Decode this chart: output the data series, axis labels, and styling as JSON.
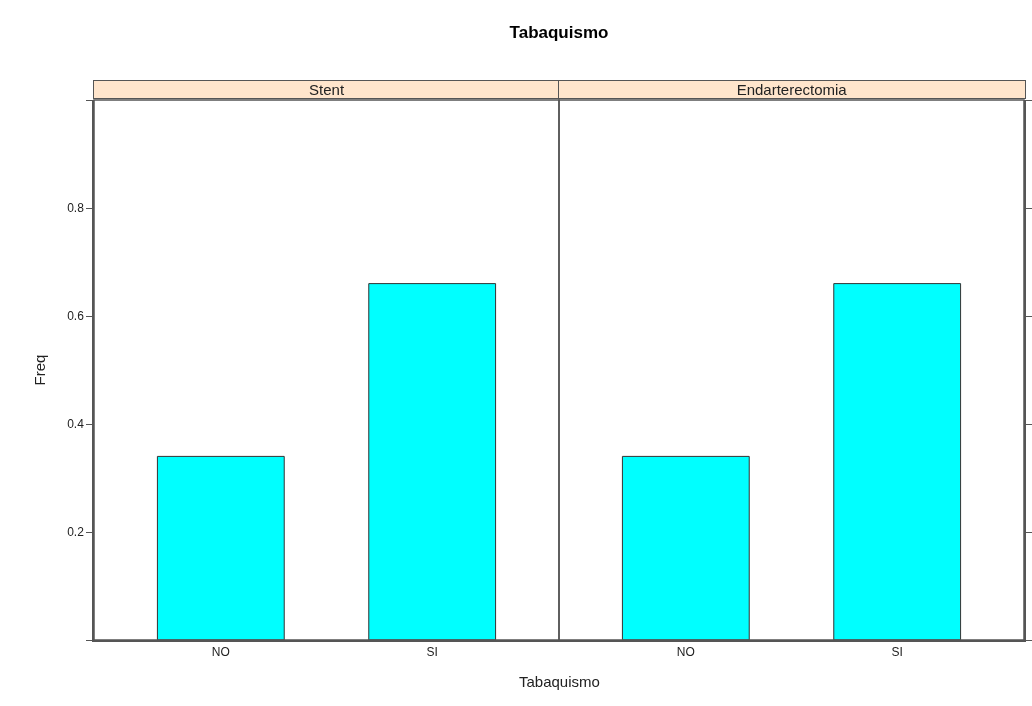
{
  "chart_data": [
    {
      "type": "bar",
      "title": "Tabaquismo",
      "subtitle": "Stent",
      "xlabel": "Tabaquismo",
      "ylabel": "Freq",
      "categories": [
        "NO",
        "SI"
      ],
      "values": [
        0.34,
        0.66
      ],
      "color": "#00ffff",
      "ylim": [
        0,
        1
      ],
      "yticks": [
        {
          "value": 0,
          "label": null
        },
        0.2,
        0.4,
        0.6,
        0.8,
        {
          "value": 1,
          "label": null
        }
      ]
    },
    {
      "type": "bar",
      "subtitle": "Endarterectomia",
      "categories": [
        "NO",
        "SI"
      ],
      "values": [
        0.34,
        0.66
      ],
      "color": "#00ffff",
      "ylim": [
        0,
        1
      ],
      "yticks": [
        {
          "value": 0,
          "label": null
        },
        {
          "value": 0.2,
          "label": null
        },
        {
          "value": 0.4,
          "label": null
        },
        {
          "value": 0.6,
          "label": null
        },
        {
          "value": 0.8,
          "label": null
        },
        {
          "value": 1,
          "label": null
        }
      ],
      "tick_labels": "x"
    }
  ]
}
